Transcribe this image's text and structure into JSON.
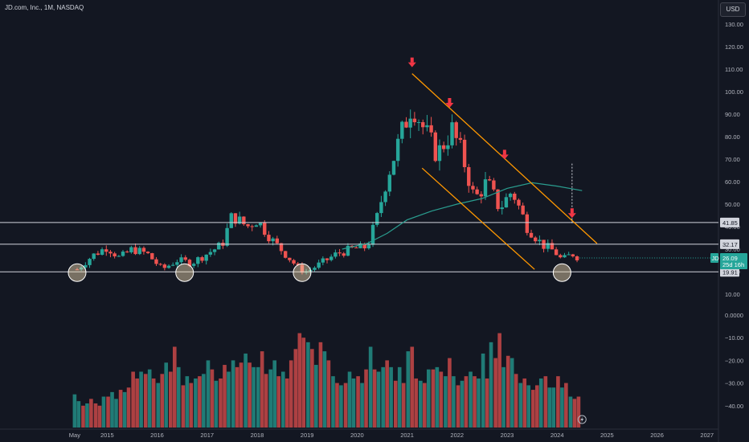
{
  "header": {
    "title": "JD.com, Inc., 1M, NASDAQ",
    "currency": "USD"
  },
  "colors": {
    "up": "#26a69a",
    "down": "#ef5350",
    "channel": "#ff9800",
    "ma": "#2a9d8f",
    "arrow": "#f23645",
    "level": "#d1d4dc",
    "circle": "#f5deb3",
    "bg": "#131722"
  },
  "icons": {
    "flash": "lightning-icon"
  },
  "chart_data": [
    {
      "type": "candlestick",
      "title": "JD.com, Inc., 1M, NASDAQ",
      "x_unit": "year (decimal)",
      "ylim": [
        10,
        130
      ],
      "y_ticks": [
        10,
        20,
        30,
        40,
        50,
        60,
        70,
        80,
        90,
        100,
        110,
        120,
        130
      ],
      "y_tick_labels": [
        "10.00",
        "20.00",
        "30.00",
        "40.00",
        "50.00",
        "60.00",
        "70.00",
        "80.00",
        "90.00",
        "100.00",
        "110.00",
        "120.00",
        "130.00"
      ],
      "x_tick_labels": [
        "May",
        "2015",
        "2016",
        "2017",
        "2018",
        "2019",
        "2020",
        "2021",
        "2022",
        "2023",
        "2024",
        "2025",
        "2026",
        "2027"
      ],
      "x_tick_values": [
        2014.35,
        2015,
        2016,
        2017,
        2018,
        2019,
        2020,
        2021,
        2022,
        2023,
        2024,
        2025,
        2026,
        2027
      ],
      "x_range": [
        2013.5,
        2027.1
      ],
      "price_samples": {
        "x": [
          2014.4,
          2014.7,
          2015.0,
          2015.25,
          2015.5,
          2015.8,
          2016.1,
          2016.4,
          2016.7,
          2017.0,
          2017.3,
          2017.5,
          2017.8,
          2018.0,
          2018.3,
          2018.6,
          2018.85,
          2019.0,
          2019.3,
          2019.6,
          2019.9,
          2020.2,
          2020.4,
          2020.6,
          2020.9,
          2021.1,
          2021.3,
          2021.6,
          2021.9,
          2022.1,
          2022.35,
          2022.6,
          2022.85,
          2023.1,
          2023.4,
          2023.7,
          2023.95,
          2024.1,
          2024.3,
          2024.45
        ],
        "y": [
          21,
          27,
          31,
          26,
          30,
          28,
          21,
          25,
          24,
          28,
          32,
          45,
          40,
          43,
          34,
          27,
          21,
          20,
          24,
          28,
          30,
          31,
          44,
          62,
          82,
          95,
          85,
          72,
          83,
          72,
          52,
          60,
          48,
          56,
          40,
          32,
          29,
          25,
          28,
          26
        ]
      },
      "levels": [
        {
          "label": "41.85",
          "value": 41.85
        },
        {
          "label": "32.17",
          "value": 32.17
        },
        {
          "label": "19.91",
          "value": 19.91
        }
      ],
      "last_price": {
        "label": "26.09",
        "value": 26.09,
        "symbol": "JD",
        "countdown": "25d 16h"
      },
      "channel": {
        "upper": [
          [
            2021.1,
            108
          ],
          [
            2024.8,
            32.5
          ]
        ],
        "lower": [
          [
            2021.3,
            66
          ],
          [
            2023.55,
            21
          ]
        ]
      },
      "moving_average": {
        "x": [
          2019.7,
          2020.2,
          2020.6,
          2021.0,
          2021.5,
          2022.0,
          2022.5,
          2023.0,
          2023.5,
          2024.0,
          2024.5
        ],
        "y": [
          30,
          32.5,
          37,
          43,
          47,
          50,
          52.5,
          57,
          59.5,
          58,
          56
        ]
      },
      "arrows_x": [
        2021.1,
        2021.85,
        2022.95,
        2024.3
      ],
      "arrows_price": [
        108,
        90,
        67,
        41
      ],
      "circles_x": [
        2014.4,
        2016.55,
        2018.9,
        2024.1
      ],
      "dotted_marker": {
        "x": 2024.3,
        "from": 68,
        "to": 41
      }
    },
    {
      "type": "bar",
      "title": "",
      "ylim": [
        -48,
        3
      ],
      "y_ticks": [
        0,
        -10,
        -20,
        -30,
        -40
      ],
      "y_tick_labels": [
        "0.0000",
        "−10.00",
        "−20.00",
        "−30.00",
        "−40.00"
      ],
      "series": [
        {
          "x": [
            2014.35,
            2014.43,
            2014.52,
            2014.6,
            2014.68,
            2014.77,
            2014.85,
            2014.93,
            2015.02,
            2015.1,
            2015.18,
            2015.27,
            2015.35,
            2015.43,
            2015.52,
            2015.6,
            2015.68,
            2015.77,
            2015.85,
            2015.93,
            2016.02,
            2016.1,
            2016.18,
            2016.27,
            2016.35,
            2016.43,
            2016.52,
            2016.6,
            2016.68,
            2016.77,
            2016.85,
            2016.93,
            2017.02,
            2017.1,
            2017.18,
            2017.27,
            2017.35,
            2017.43,
            2017.52,
            2017.6,
            2017.68,
            2017.77,
            2017.85,
            2017.93,
            2018.02,
            2018.1,
            2018.18,
            2018.27,
            2018.35,
            2018.43,
            2018.52,
            2018.6,
            2018.68,
            2018.77,
            2018.85,
            2018.93,
            2019.02,
            2019.1,
            2019.18,
            2019.27,
            2019.35,
            2019.43,
            2019.52,
            2019.6,
            2019.68,
            2019.77,
            2019.85,
            2019.93,
            2020.02,
            2020.1,
            2020.18,
            2020.27,
            2020.35,
            2020.43,
            2020.52,
            2020.6,
            2020.68,
            2020.77,
            2020.85,
            2020.93,
            2021.02,
            2021.1,
            2021.18,
            2021.27,
            2021.35,
            2021.43,
            2021.52,
            2021.6,
            2021.68,
            2021.77,
            2021.85,
            2021.93,
            2022.02,
            2022.1,
            2022.18,
            2022.27,
            2022.35,
            2022.43,
            2022.52,
            2022.6,
            2022.68,
            2022.77,
            2022.85,
            2022.93,
            2023.02,
            2023.1,
            2023.18,
            2023.27,
            2023.35,
            2023.43,
            2023.52,
            2023.6,
            2023.68,
            2023.77,
            2023.85,
            2023.93,
            2024.02,
            2024.1,
            2024.18,
            2024.27,
            2024.35,
            2024.43
          ],
          "y": [
            -35,
            -38,
            -40,
            -39,
            -37,
            -39,
            -40,
            -36,
            -36,
            -34,
            -37,
            -33,
            -34,
            -32,
            -25,
            -28,
            -25,
            -26,
            -24,
            -28,
            -30,
            -26,
            -21,
            -25,
            -14,
            -23,
            -31,
            -27,
            -30,
            -28,
            -27,
            -26,
            -20,
            -24,
            -29,
            -28,
            -22,
            -25,
            -20,
            -23,
            -21,
            -17,
            -21,
            -23,
            -23,
            -16,
            -26,
            -24,
            -20,
            -27,
            -25,
            -28,
            -20,
            -15,
            -8,
            -10,
            -12,
            -15,
            -22,
            -12,
            -16,
            -20,
            -27,
            -30,
            -31,
            -30,
            -25,
            -28,
            -27,
            -30,
            -24,
            -14,
            -24,
            -25,
            -23,
            -20,
            -23,
            -29,
            -23,
            -30,
            -16,
            -14,
            -28,
            -29,
            -30,
            -24,
            -24,
            -23,
            -25,
            -27,
            -19,
            -27,
            -31,
            -29,
            -27,
            -25,
            -27,
            -28,
            -17,
            -28,
            -12,
            -19,
            -8,
            -23,
            -18,
            -19,
            -26,
            -30,
            -28,
            -31,
            -33,
            -31,
            -28,
            -27,
            -32,
            -32,
            -27,
            -32,
            -30,
            -36,
            -37,
            -36
          ],
          "color_sign": [
            "up",
            "up",
            "down",
            "up",
            "down",
            "down",
            "down",
            "up",
            "down",
            "up",
            "up",
            "down",
            "up",
            "down",
            "down",
            "down",
            "up",
            "down",
            "up",
            "down",
            "up",
            "down",
            "up",
            "down",
            "down",
            "up",
            "down",
            "up",
            "down",
            "up",
            "down",
            "up",
            "up",
            "down",
            "up",
            "down",
            "down",
            "up",
            "up",
            "down",
            "down",
            "up",
            "down",
            "up",
            "up",
            "down",
            "down",
            "up",
            "up",
            "down",
            "up",
            "down",
            "down",
            "down",
            "down",
            "down",
            "up",
            "down",
            "up",
            "down",
            "up",
            "down",
            "up",
            "down",
            "up",
            "down",
            "up",
            "up",
            "down",
            "up",
            "down",
            "up",
            "down",
            "up",
            "up",
            "down",
            "up",
            "down",
            "up",
            "down",
            "up",
            "down",
            "down",
            "up",
            "down",
            "up",
            "down",
            "up",
            "down",
            "up",
            "down",
            "up",
            "down",
            "up",
            "down",
            "up",
            "down",
            "up",
            "up",
            "down",
            "up",
            "down",
            "down",
            "up",
            "down",
            "up",
            "down",
            "up",
            "down",
            "up",
            "down",
            "down",
            "up",
            "down",
            "up",
            "up",
            "down",
            "up",
            "down",
            "up",
            "down"
          ]
        }
      ]
    }
  ]
}
